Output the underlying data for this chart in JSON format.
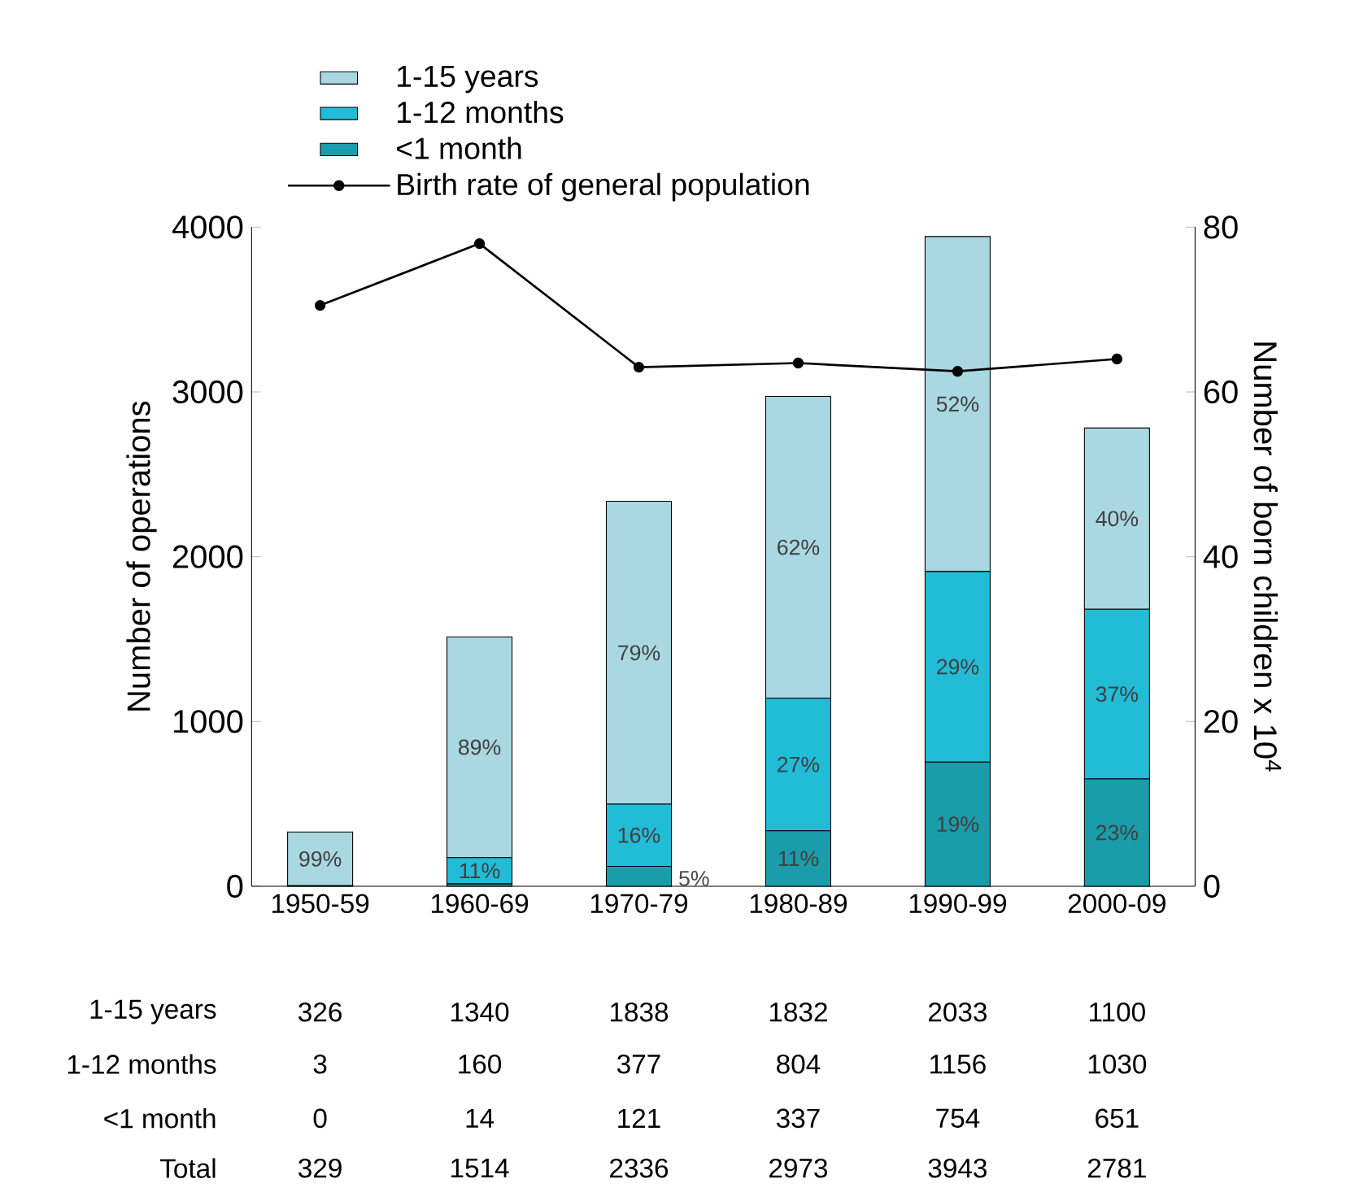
{
  "chart_data": {
    "type": "bar",
    "stacked": true,
    "categories": [
      "1950-59",
      "1960-69",
      "1970-79",
      "1980-89",
      "1990-99",
      "2000-09"
    ],
    "ylabel": "Number of operations",
    "y2label": "Number of born children x 10$^{4}$",
    "ylim": [
      0,
      4000
    ],
    "yticks": [
      0,
      1000,
      2000,
      3000,
      4000
    ],
    "y2lim": [
      0,
      80
    ],
    "y2ticks": [
      0,
      20,
      40,
      60,
      80
    ],
    "series": [
      {
        "name": "<1 month",
        "color": "#1a9cab",
        "values": [
          0,
          14,
          121,
          337,
          754,
          651
        ],
        "value_labels": [
          "0",
          "14",
          "121",
          "337",
          "754",
          "651"
        ]
      },
      {
        "name": "1-12 months",
        "color": "#22bcd6",
        "values": [
          3,
          160,
          377,
          804,
          1156,
          1030
        ],
        "value_labels": [
          "3",
          "160",
          "377",
          "804",
          "1156",
          "1030"
        ]
      },
      {
        "name": "1-15 years",
        "color": "#a9d8e2",
        "values": [
          326,
          1340,
          1838,
          1832,
          2033,
          1100
        ],
        "value_labels": [
          "326",
          "1340",
          "1838",
          "1832",
          "2033",
          "1100"
        ]
      },
      {
        "name": "Birth rate of general population",
        "type": "line",
        "axis": "y2",
        "color": "#000000",
        "marker": "circle",
        "values": [
          70.5,
          78,
          63,
          63.5,
          62.5,
          64
        ]
      }
    ],
    "annotations": [
      "Total",
      "99%",
      "89%",
      "11%",
      "79%",
      "16%",
      "5%",
      "62%",
      "27%",
      "11%",
      "52%",
      "29%",
      "19%",
      "40%",
      "37%",
      "23%",
      "329",
      "1514",
      "2336",
      "2973",
      "3943",
      "2781"
    ],
    "legend": "top left",
    "grid": false
  }
}
